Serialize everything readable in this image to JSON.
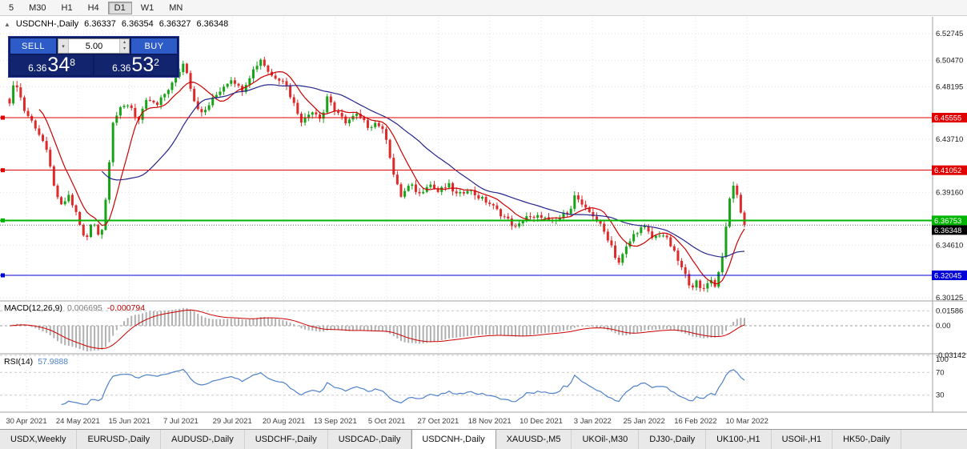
{
  "toolbar": {
    "timeframes": [
      {
        "label": "5",
        "active": false
      },
      {
        "label": "M30",
        "active": false
      },
      {
        "label": "H1",
        "active": false
      },
      {
        "label": "H4",
        "active": false
      },
      {
        "label": "D1",
        "active": true
      },
      {
        "label": "W1",
        "active": false
      },
      {
        "label": "MN",
        "active": false
      }
    ]
  },
  "symbol_line": {
    "collapse_icon": "▲",
    "title": "USDCNH-,Daily",
    "open": "6.36337",
    "high": "6.36354",
    "low": "6.36327",
    "close": "6.36348"
  },
  "trade_panel": {
    "sell_label": "SELL",
    "buy_label": "BUY",
    "volume": "5.00",
    "dropdown_icon": "▾",
    "spin_up_icon": "▴",
    "spin_down_icon": "▾",
    "sell_price": {
      "small": "6.36",
      "big": "34",
      "sup": "8"
    },
    "buy_price": {
      "small": "6.36",
      "big": "53",
      "sup": "2"
    }
  },
  "chart_data": {
    "type": "candlestick",
    "symbol": "USDCNH-",
    "timeframe": "Daily",
    "ohlc": {
      "open": 6.36337,
      "high": 6.36354,
      "low": 6.36327,
      "close": 6.36348
    },
    "price_axis": {
      "min": 6.2992,
      "max": 6.5413,
      "labels": [
        6.52745,
        6.5047,
        6.48195,
        6.4371,
        6.3916,
        6.3461,
        6.30125
      ]
    },
    "levels": [
      {
        "value": 6.45555,
        "label": "6.45555",
        "color": "#e00000",
        "line_width": 1
      },
      {
        "value": 6.41052,
        "label": "6.41052",
        "color": "#e00000",
        "line_width": 1
      },
      {
        "value": 6.36753,
        "label": "6.36753",
        "color": "#00b400",
        "line_width": 2
      },
      {
        "value": 6.32045,
        "label": "6.32045",
        "color": "#0000d8",
        "line_width": 1
      }
    ],
    "current_price": {
      "value": 6.36348,
      "label": "6.36348",
      "badge_color": "#000000"
    },
    "candles": {
      "count": 200,
      "bull_color": "#17a317",
      "bear_color": "#dd2a2a",
      "path": [
        [
          0.0,
          6.47
        ],
        [
          0.008,
          6.488
        ],
        [
          0.02,
          6.462
        ],
        [
          0.035,
          6.448
        ],
        [
          0.048,
          6.432
        ],
        [
          0.058,
          6.405
        ],
        [
          0.068,
          6.378
        ],
        [
          0.08,
          6.388
        ],
        [
          0.092,
          6.372
        ],
        [
          0.103,
          6.348
        ],
        [
          0.113,
          6.368
        ],
        [
          0.124,
          6.352
        ],
        [
          0.132,
          6.392
        ],
        [
          0.14,
          6.452
        ],
        [
          0.15,
          6.462
        ],
        [
          0.163,
          6.468
        ],
        [
          0.175,
          6.452
        ],
        [
          0.188,
          6.472
        ],
        [
          0.2,
          6.465
        ],
        [
          0.213,
          6.478
        ],
        [
          0.225,
          6.488
        ],
        [
          0.238,
          6.504
        ],
        [
          0.25,
          6.472
        ],
        [
          0.262,
          6.458
        ],
        [
          0.275,
          6.47
        ],
        [
          0.29,
          6.482
        ],
        [
          0.303,
          6.49
        ],
        [
          0.315,
          6.478
        ],
        [
          0.33,
          6.495
        ],
        [
          0.342,
          6.506
        ],
        [
          0.355,
          6.492
        ],
        [
          0.373,
          6.488
        ],
        [
          0.385,
          6.47
        ],
        [
          0.398,
          6.452
        ],
        [
          0.412,
          6.462
        ],
        [
          0.425,
          6.455
        ],
        [
          0.433,
          6.476
        ],
        [
          0.443,
          6.46
        ],
        [
          0.458,
          6.452
        ],
        [
          0.472,
          6.458
        ],
        [
          0.488,
          6.448
        ],
        [
          0.5,
          6.452
        ],
        [
          0.513,
          6.438
        ],
        [
          0.522,
          6.408
        ],
        [
          0.532,
          6.388
        ],
        [
          0.545,
          6.398
        ],
        [
          0.558,
          6.39
        ],
        [
          0.57,
          6.4
        ],
        [
          0.583,
          6.392
        ],
        [
          0.597,
          6.398
        ],
        [
          0.61,
          6.388
        ],
        [
          0.623,
          6.395
        ],
        [
          0.637,
          6.388
        ],
        [
          0.653,
          6.382
        ],
        [
          0.665,
          6.375
        ],
        [
          0.678,
          6.368
        ],
        [
          0.69,
          6.36
        ],
        [
          0.702,
          6.372
        ],
        [
          0.712,
          6.368
        ],
        [
          0.723,
          6.372
        ],
        [
          0.737,
          6.365
        ],
        [
          0.75,
          6.37
        ],
        [
          0.763,
          6.378
        ],
        [
          0.77,
          6.39
        ],
        [
          0.78,
          6.378
        ],
        [
          0.793,
          6.373
        ],
        [
          0.805,
          6.362
        ],
        [
          0.818,
          6.348
        ],
        [
          0.828,
          6.33
        ],
        [
          0.84,
          6.345
        ],
        [
          0.852,
          6.358
        ],
        [
          0.863,
          6.362
        ],
        [
          0.875,
          6.352
        ],
        [
          0.887,
          6.357
        ],
        [
          0.898,
          6.348
        ],
        [
          0.908,
          6.335
        ],
        [
          0.918,
          6.322
        ],
        [
          0.928,
          6.31
        ],
        [
          0.933,
          6.316
        ],
        [
          0.942,
          6.306
        ],
        [
          0.952,
          6.318
        ],
        [
          0.96,
          6.312
        ],
        [
          0.968,
          6.33
        ],
        [
          0.976,
          6.365
        ],
        [
          0.983,
          6.402
        ],
        [
          0.99,
          6.388
        ],
        [
          1.0,
          6.3635
        ]
      ]
    },
    "ma_lines": [
      {
        "period": 9,
        "color": "#cc0000"
      },
      {
        "period": 26,
        "color": "#26268c"
      }
    ],
    "macd": {
      "label": "MACD(12,26,9)",
      "value_main": "0.006695",
      "value_signal": "-0.000794",
      "fast": 12,
      "slow": 26,
      "signal": 9,
      "histogram_color": "#b0b0b0",
      "signal_color": "#cc0000",
      "axis": [
        {
          "value": 0.01586,
          "label": "0.01586"
        },
        {
          "value": 0,
          "label": "0.00"
        },
        {
          "value": -0.03142,
          "label": "-0.03142"
        }
      ]
    },
    "rsi": {
      "label": "RSI(14)",
      "value": "57.9888",
      "period": 14,
      "color": "#4f81c8",
      "axis": [
        {
          "value": 100,
          "label": "100"
        },
        {
          "value": 70,
          "label": "70"
        },
        {
          "value": 30,
          "label": "30"
        }
      ],
      "level_lines": [
        70,
        30
      ]
    },
    "dates": [
      "30 Apr 2021",
      "24 May 2021",
      "15 Jun 2021",
      "7 Jul 2021",
      "29 Jul 2021",
      "20 Aug 2021",
      "13 Sep 2021",
      "5 Oct 2021",
      "27 Oct 2021",
      "18 Nov 2021",
      "10 Dec 2021",
      "3 Jan 2022",
      "25 Jan 2022",
      "16 Feb 2022",
      "10 Mar 2022"
    ]
  },
  "bottom_tabs": [
    {
      "label": "USDX,Weekly",
      "active": false
    },
    {
      "label": "EURUSD-,Daily",
      "active": false
    },
    {
      "label": "AUDUSD-,Daily",
      "active": false
    },
    {
      "label": "USDCHF-,Daily",
      "active": false
    },
    {
      "label": "USDCAD-,Daily",
      "active": false
    },
    {
      "label": "USDCNH-,Daily",
      "active": true
    },
    {
      "label": "XAUUSD-,M5",
      "active": false
    },
    {
      "label": "UKOil-,M30",
      "active": false
    },
    {
      "label": "DJ30-,Daily",
      "active": false
    },
    {
      "label": "UK100-,H1",
      "active": false
    },
    {
      "label": "USOil-,H1",
      "active": false
    },
    {
      "label": "HK50-,Daily",
      "active": false
    }
  ]
}
